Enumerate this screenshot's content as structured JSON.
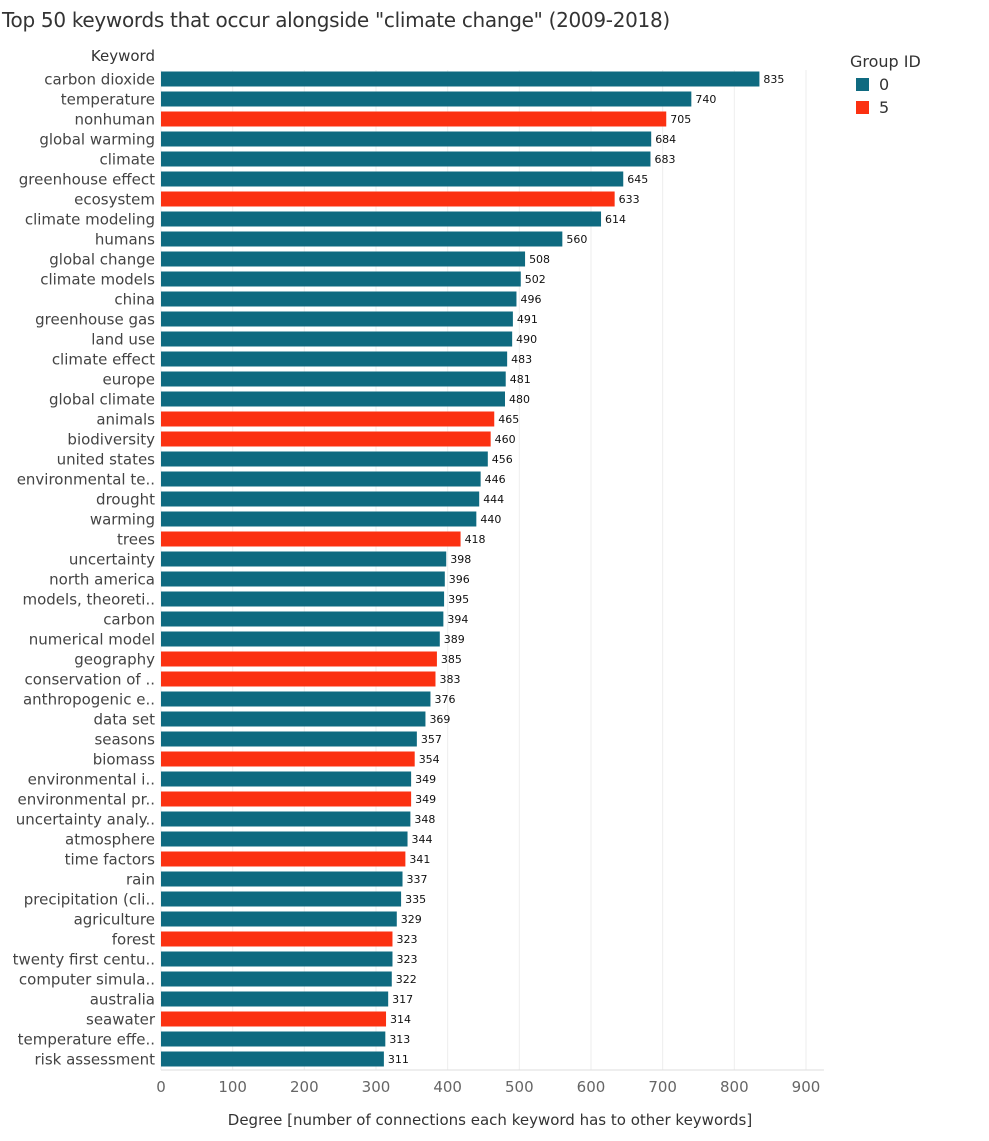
{
  "chart_data": {
    "type": "bar",
    "orientation": "horizontal",
    "title": "Top 50 keywords that occur alongside \"climate change\" (2009-2018)",
    "ylabel": "Keyword",
    "xlabel": "Degree [number of connections each keyword has to other keywords]",
    "xlim": [
      0,
      925
    ],
    "xticks": [
      0,
      100,
      200,
      300,
      400,
      500,
      600,
      700,
      800,
      900
    ],
    "grid": true,
    "legend": {
      "title": "Group ID",
      "position": "top-right",
      "entries": [
        {
          "label": "0",
          "color": "#0f6a80"
        },
        {
          "label": "5",
          "color": "#fb3111"
        }
      ]
    },
    "categories": [
      "carbon dioxide",
      "temperature",
      "nonhuman",
      "global warming",
      "climate",
      "greenhouse effect",
      "ecosystem",
      "climate modeling",
      "humans",
      "global change",
      "climate models",
      "china",
      "greenhouse gas",
      "land use",
      "climate effect",
      "europe",
      "global climate",
      "animals",
      "biodiversity",
      "united states",
      "environmental te..",
      "drought",
      "warming",
      "trees",
      "uncertainty",
      "north america",
      "models, theoreti..",
      "carbon",
      "numerical model",
      "geography",
      "conservation of ..",
      "anthropogenic e..",
      "data set",
      "seasons",
      "biomass",
      "environmental i..",
      "environmental pr..",
      "uncertainty analy..",
      "atmosphere",
      "time factors",
      "rain",
      "precipitation (cli..",
      "agriculture",
      "forest",
      "twenty first centu..",
      "computer simula..",
      "australia",
      "seawater",
      "temperature effe..",
      "risk assessment"
    ],
    "values": [
      835,
      740,
      705,
      684,
      683,
      645,
      633,
      614,
      560,
      508,
      502,
      496,
      491,
      490,
      483,
      481,
      480,
      465,
      460,
      456,
      446,
      444,
      440,
      418,
      398,
      396,
      395,
      394,
      389,
      385,
      383,
      376,
      369,
      357,
      354,
      349,
      349,
      348,
      344,
      341,
      337,
      335,
      329,
      323,
      323,
      322,
      317,
      314,
      313,
      311
    ],
    "groups": [
      "0",
      "0",
      "5",
      "0",
      "0",
      "0",
      "5",
      "0",
      "0",
      "0",
      "0",
      "0",
      "0",
      "0",
      "0",
      "0",
      "0",
      "5",
      "5",
      "0",
      "0",
      "0",
      "0",
      "5",
      "0",
      "0",
      "0",
      "0",
      "0",
      "5",
      "5",
      "0",
      "0",
      "0",
      "5",
      "0",
      "5",
      "0",
      "0",
      "5",
      "0",
      "0",
      "0",
      "5",
      "0",
      "0",
      "0",
      "5",
      "0",
      "0"
    ]
  }
}
